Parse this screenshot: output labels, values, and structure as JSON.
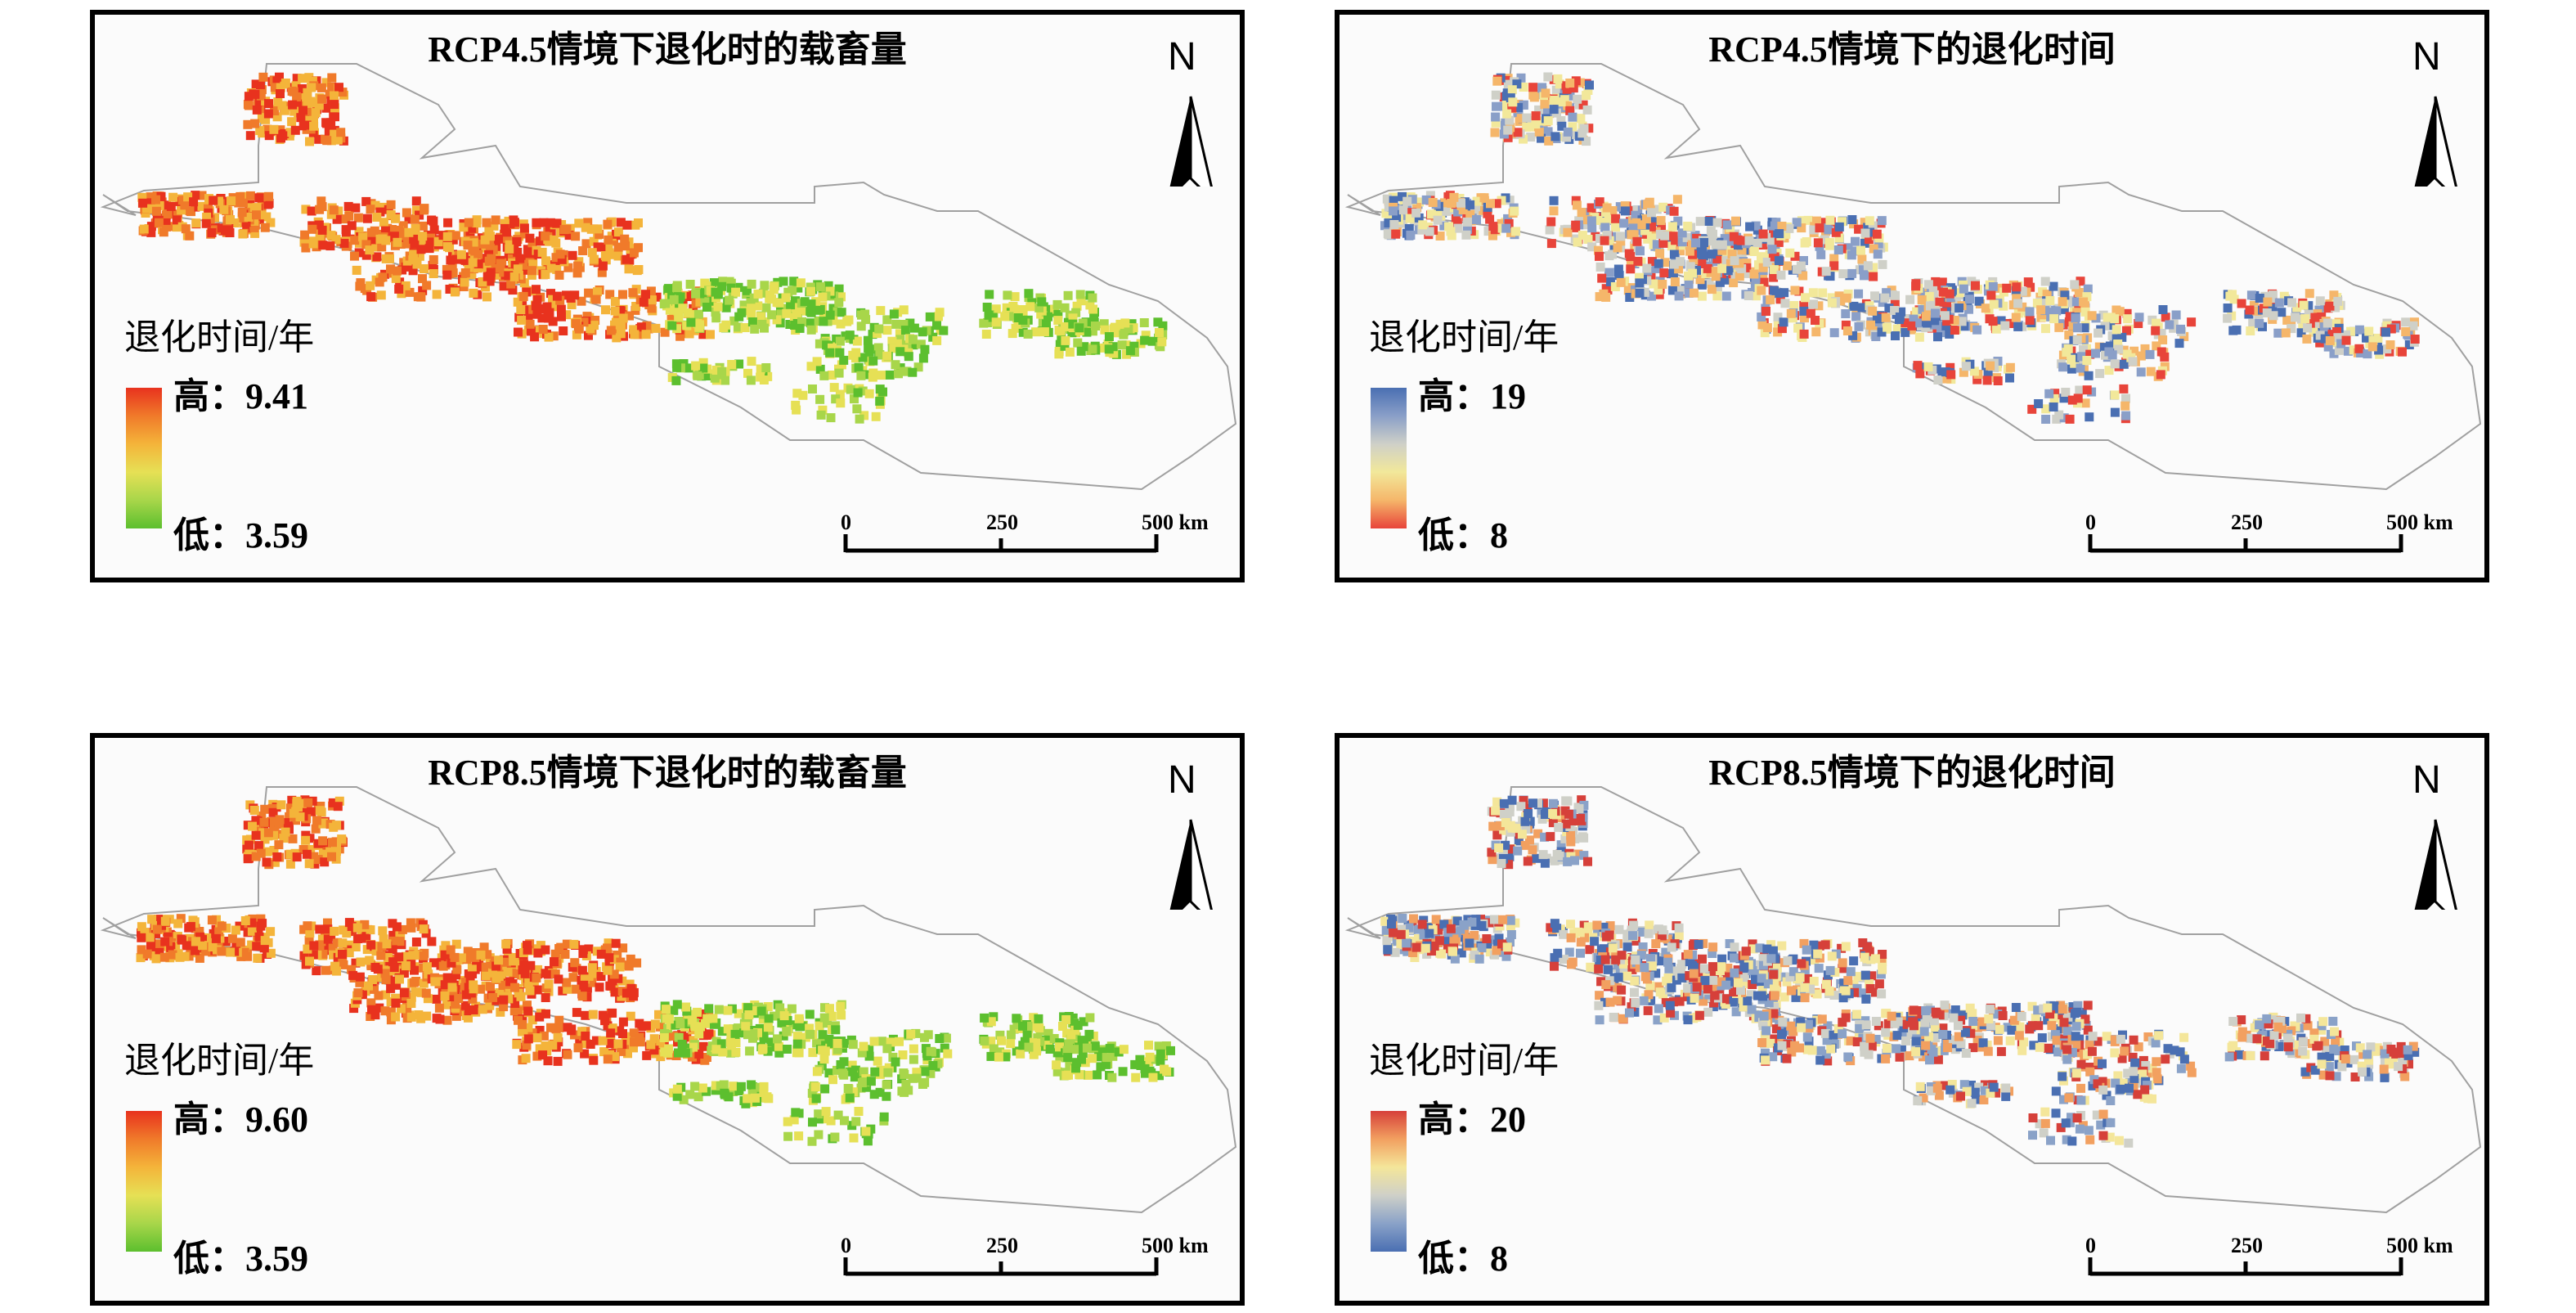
{
  "panels": [
    {
      "title": "RCP4.5情境下退化时的载畜量",
      "legend_title": "退化时间/年",
      "legend_high": "高：9.41",
      "legend_low": "低：3.59",
      "ramp": [
        "#e8321e",
        "#f07a2a",
        "#f4b43a",
        "#e6e055",
        "#a8d64a",
        "#5cbf2e"
      ],
      "north_label": "N",
      "scale_labels": [
        "0",
        "250",
        "500 km"
      ]
    },
    {
      "title": "RCP4.5情境下的退化时间",
      "legend_title": "退化时间/年",
      "legend_high": "高：19",
      "legend_low": "低：8",
      "ramp": [
        "#4a6fb2",
        "#8a9fc8",
        "#cfd0c8",
        "#f2e89a",
        "#f5b66a",
        "#e8443a"
      ],
      "north_label": "N",
      "scale_labels": [
        "0",
        "250",
        "500 km"
      ]
    },
    {
      "title": "RCP8.5情境下退化时的载畜量",
      "legend_title": "退化时间/年",
      "legend_high": "高：9.60",
      "legend_low": "低：3.59",
      "ramp": [
        "#e8321e",
        "#f07a2a",
        "#f4b43a",
        "#e6e055",
        "#a8d64a",
        "#5cbf2e"
      ],
      "north_label": "N",
      "scale_labels": [
        "0",
        "250",
        "500 km"
      ]
    },
    {
      "title": "RCP8.5情境下的退化时间",
      "legend_title": "退化时间/年",
      "legend_high": "高：20",
      "legend_low": "低：8",
      "ramp": [
        "#d6403a",
        "#f2a060",
        "#f4e69a",
        "#cfd0c8",
        "#8aa2c8",
        "#4a6fb2"
      ],
      "north_label": "N",
      "scale_labels": [
        "0",
        "250",
        "500 km"
      ]
    }
  ]
}
